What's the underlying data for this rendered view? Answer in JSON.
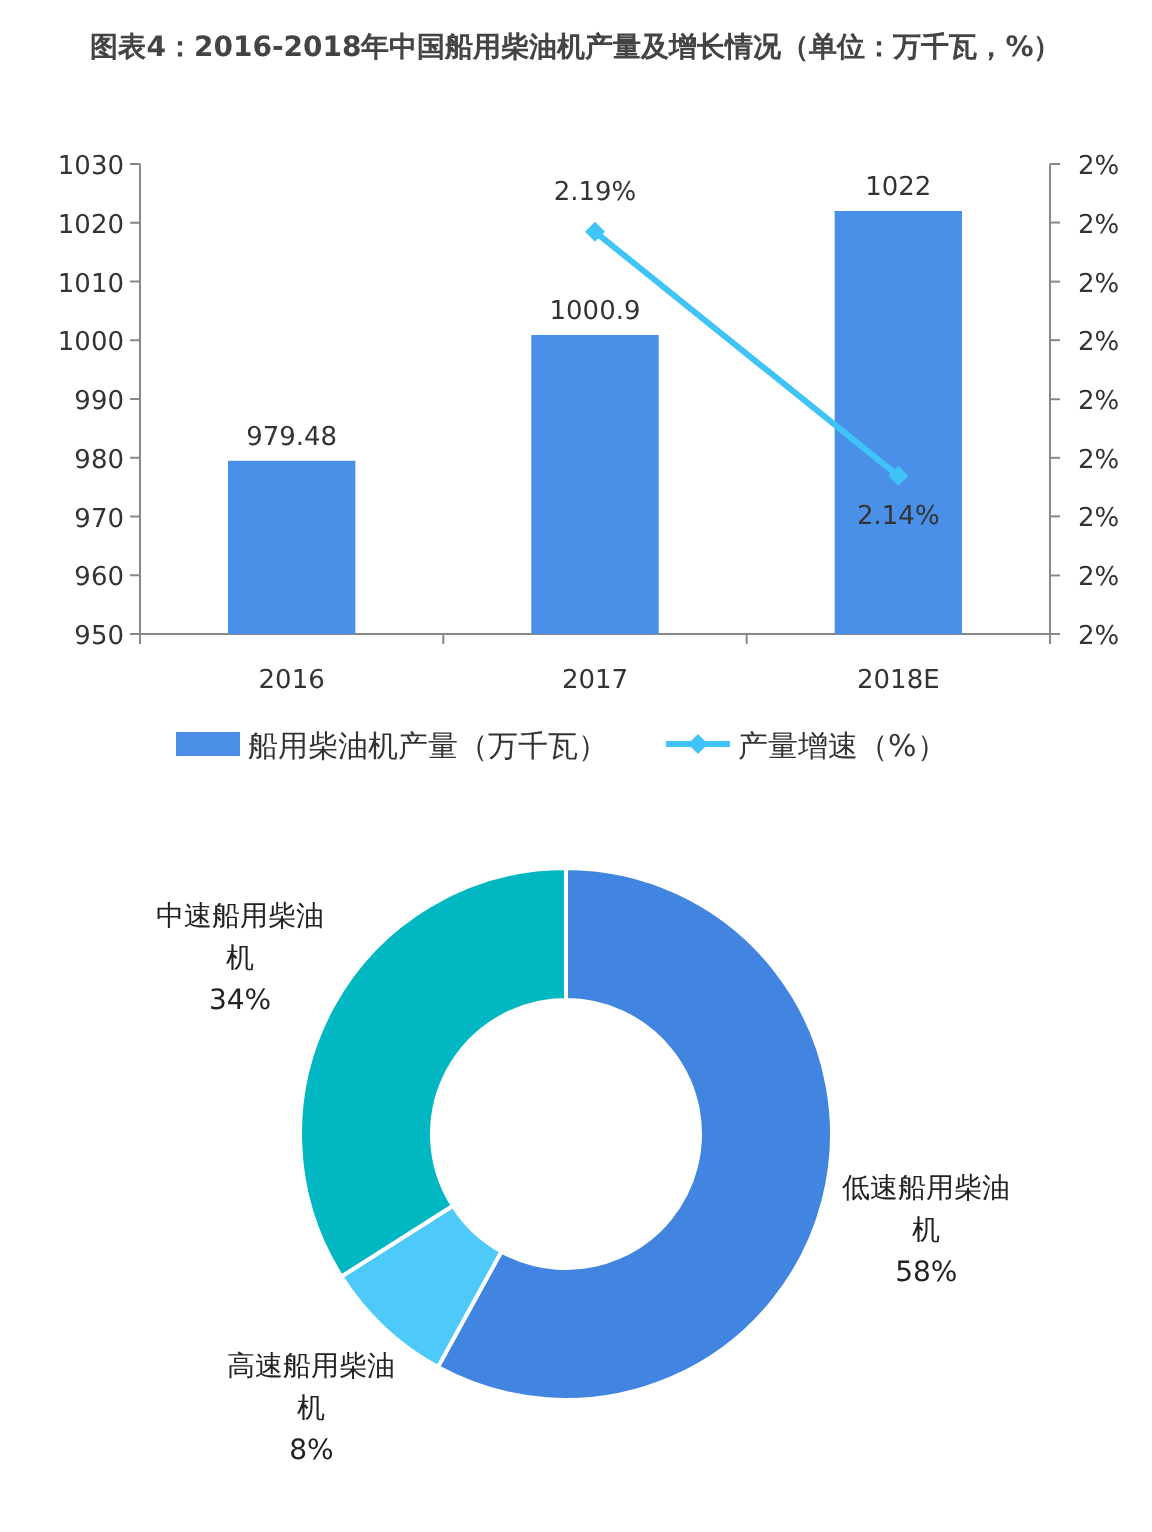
{
  "chart_data": [
    {
      "type": "bar",
      "title": "图表4：2016-2018年中国船用柴油机产量及增长情况（单位：万千瓦，%）",
      "categories": [
        "2016",
        "2017",
        "2018E"
      ],
      "series": [
        {
          "name": "船用柴油机产量（万千瓦）",
          "type": "bar",
          "color": "#4a8fe8",
          "values": [
            979.48,
            1000.9,
            1022
          ]
        },
        {
          "name": "产量增速（%）",
          "type": "line",
          "axis": "y2",
          "color": "#40c4f7",
          "marker": "diamond",
          "values": [
            null,
            2.19,
            2.14
          ],
          "value_labels": [
            null,
            "2.19%",
            "2.14%"
          ]
        }
      ],
      "data_labels": true,
      "ylim": [
        950,
        1030
      ],
      "yticks": [
        950,
        960,
        970,
        980,
        990,
        1000,
        1010,
        1020,
        1030
      ],
      "y2lim": [
        2.1076,
        2.2039
      ],
      "y2ticks": [
        {
          "value": 2.1076,
          "label": "2%"
        },
        {
          "value": 2.1196,
          "label": "2%"
        },
        {
          "value": 2.1317,
          "label": "2%"
        },
        {
          "value": 2.1437,
          "label": "2%"
        },
        {
          "value": 2.1557,
          "label": "2%"
        },
        {
          "value": 2.1678,
          "label": "2%"
        },
        {
          "value": 2.1798,
          "label": "2%"
        },
        {
          "value": 2.1919,
          "label": "2%"
        },
        {
          "value": 2.2039,
          "label": "2%"
        }
      ],
      "legend": "bottom",
      "grid": false
    },
    {
      "type": "donut",
      "categories": [
        "低速船用柴油机",
        "高速船用柴油机",
        "中速船用柴油机"
      ],
      "values": [
        58,
        8,
        34
      ],
      "colors": [
        "#4285e0",
        "#4dcaf9",
        "#00b7c2"
      ],
      "value_labels": [
        "58%",
        "8%",
        "34%"
      ]
    }
  ]
}
